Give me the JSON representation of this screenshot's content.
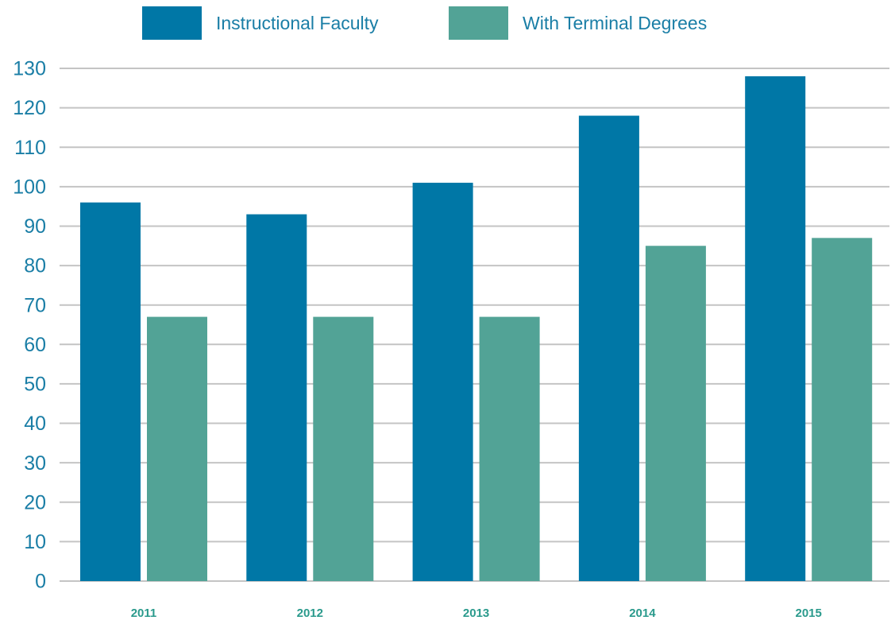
{
  "chart_data": {
    "type": "bar",
    "categories": [
      "2011",
      "2012",
      "2013",
      "2014",
      "2015"
    ],
    "series": [
      {
        "name": "Instructional Faculty",
        "color": "#0077a6",
        "values": [
          96,
          93,
          101,
          118,
          128
        ]
      },
      {
        "name": "With Terminal Degrees",
        "color": "#52a396",
        "values": [
          67,
          67,
          67,
          85,
          87
        ]
      }
    ],
    "ylim": [
      0,
      130
    ],
    "yticks": [
      0,
      10,
      20,
      30,
      40,
      50,
      60,
      70,
      80,
      90,
      100,
      110,
      120,
      130
    ],
    "grid": true,
    "legend": "top"
  }
}
